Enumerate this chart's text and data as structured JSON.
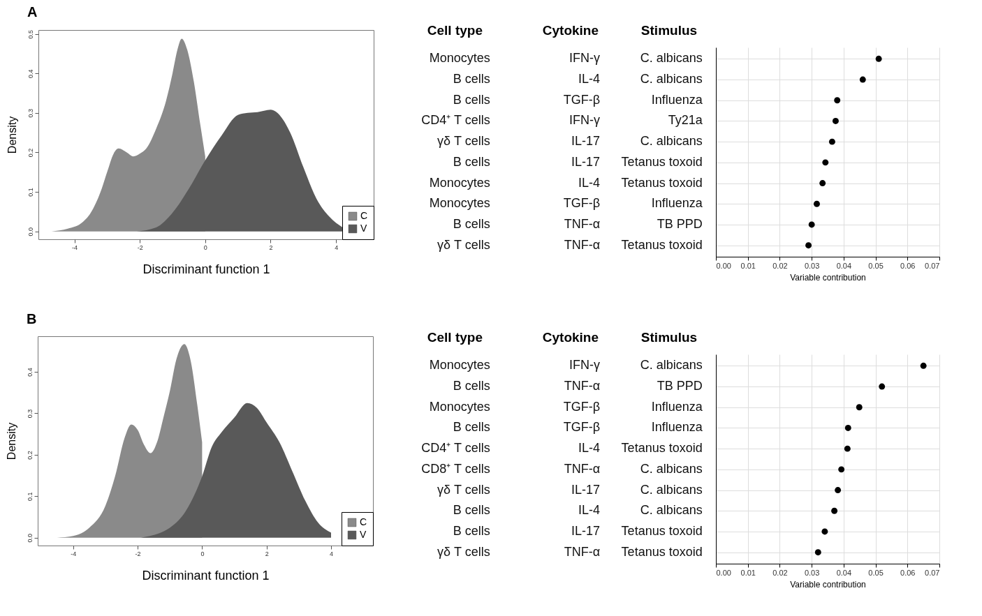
{
  "chart_data": [
    {
      "type": "area",
      "title": "A",
      "xlabel": "Discriminant function 1",
      "ylabel": "Density",
      "xlim": [
        -5.1,
        5.15
      ],
      "ylim": [
        -0.02,
        0.51
      ],
      "xticks": [
        -4,
        -2,
        0,
        2,
        4
      ],
      "yticks": [
        {
          "value": 0,
          "label": "0.0"
        },
        0.1,
        0.2,
        0.3,
        0.4,
        0.5
      ],
      "legend": "bottom right",
      "series": [
        {
          "name": "C",
          "color": "#8a8a8a",
          "x": [
            -4.7,
            -4.2,
            -3.8,
            -3.5,
            -3.2,
            -3.0,
            -2.8,
            -2.65,
            -2.4,
            -2.2,
            -2.0,
            -1.8,
            -1.5,
            -1.2,
            -1.0,
            -0.85,
            -0.72,
            -0.55,
            -0.35,
            -0.15,
            0
          ],
          "values": [
            0,
            0.007,
            0.02,
            0.047,
            0.1,
            0.15,
            0.197,
            0.21,
            0.2,
            0.19,
            0.197,
            0.21,
            0.26,
            0.33,
            0.4,
            0.46,
            0.488,
            0.46,
            0.38,
            0.27,
            0.19
          ]
        },
        {
          "name": "V",
          "color": "#595959",
          "x": [
            -2.1,
            -1.5,
            -1.0,
            -0.5,
            0,
            0.5,
            1.0,
            1.3,
            1.6,
            2.0,
            2.3,
            2.6,
            3.0,
            3.4,
            3.8,
            4.2
          ],
          "values": [
            0,
            0.01,
            0.047,
            0.108,
            0.18,
            0.243,
            0.295,
            0.3,
            0.302,
            0.308,
            0.292,
            0.25,
            0.163,
            0.083,
            0.037,
            0.01
          ]
        }
      ]
    },
    {
      "type": "other",
      "categories": [
        "Cell type",
        "Cytokine",
        "Stimulus"
      ],
      "cell_labels": [
        [
          "Monocytes",
          "IFN-γ",
          "C. albicans"
        ],
        [
          "B cells",
          "IL-4",
          "C. albicans"
        ],
        [
          "B cells",
          "TGF-β",
          "Influenza"
        ],
        [
          "CD4⁺ T cells",
          "IFN-γ",
          "Ty21a"
        ],
        [
          "γδ T cells",
          "IL-17",
          "C. albicans"
        ],
        [
          "B cells",
          "IL-17",
          "Tetanus toxoid"
        ],
        [
          "Monocytes",
          "IL-4",
          "Tetanus toxoid"
        ],
        [
          "Monocytes",
          "TGF-β",
          "Influenza"
        ],
        [
          "B cells",
          "TNF-α",
          "TB PPD"
        ],
        [
          "γδ T cells",
          "TNF-α",
          "Tetanus toxoid"
        ]
      ]
    },
    {
      "type": "scatter",
      "orientation": "horizontal",
      "categories": [
        null,
        null,
        null,
        null,
        null,
        null,
        null,
        null,
        null,
        null
      ],
      "values": [
        0.051,
        0.046,
        0.038,
        0.0375,
        0.0364,
        0.0343,
        0.0334,
        0.0316,
        0.03,
        0.029
      ],
      "color": "#000000",
      "marker": "circle",
      "xlabel": "Variable contribution",
      "xlim": [
        0,
        0.07
      ],
      "xticks": [
        {
          "value": 0,
          "label": "0.00"
        },
        0.01,
        0.02,
        0.03,
        0.04,
        0.05,
        0.06,
        0.07
      ],
      "grid": true,
      "tick_labels": "x"
    },
    {
      "type": "area",
      "title": "B",
      "xlabel": "Discriminant function 1",
      "ylabel": "Density",
      "xlim": [
        -5.1,
        5.3
      ],
      "ylim": [
        -0.019,
        0.486
      ],
      "xticks": [
        -4,
        -2,
        0,
        2,
        4
      ],
      "yticks": [
        {
          "value": 0,
          "label": "0.0"
        },
        0.1,
        0.2,
        0.3,
        0.4
      ],
      "legend": "bottom right",
      "series": [
        {
          "name": "C",
          "color": "#8a8a8a",
          "x": [
            -4.5,
            -4.0,
            -3.5,
            -3.0,
            -2.7,
            -2.4,
            -2.2,
            -2.0,
            -1.8,
            -1.6,
            -1.4,
            -1.2,
            -1.0,
            -0.8,
            -0.55,
            -0.35,
            -0.15,
            0
          ],
          "values": [
            0,
            0.004,
            0.024,
            0.077,
            0.148,
            0.242,
            0.273,
            0.26,
            0.224,
            0.204,
            0.23,
            0.29,
            0.354,
            0.43,
            0.467,
            0.425,
            0.32,
            0.23
          ]
        },
        {
          "name": "V",
          "color": "#595959",
          "x": [
            -1.9,
            -1.0,
            -0.5,
            0,
            0.3,
            0.6,
            1.0,
            1.4,
            1.7,
            2.0,
            2.4,
            2.8,
            3.2,
            3.6,
            4.0
          ],
          "values": [
            0,
            0.024,
            0.065,
            0.148,
            0.219,
            0.254,
            0.29,
            0.325,
            0.313,
            0.278,
            0.23,
            0.16,
            0.089,
            0.036,
            0.012
          ]
        }
      ]
    },
    {
      "type": "other",
      "categories": [
        "Cell type",
        "Cytokine",
        "Stimulus"
      ],
      "cell_labels": [
        [
          "Monocytes",
          "IFN-γ",
          "C. albicans"
        ],
        [
          "B cells",
          "TNF-α",
          "TB PPD"
        ],
        [
          "Monocytes",
          "TGF-β",
          "Influenza"
        ],
        [
          "B cells",
          "TGF-β",
          "Influenza"
        ],
        [
          "CD4⁺ T cells",
          "IL-4",
          "Tetanus toxoid"
        ],
        [
          "CD8⁺ T cells",
          "TNF-α",
          "C. albicans"
        ],
        [
          "γδ T cells",
          "IL-17",
          "C. albicans"
        ],
        [
          "B cells",
          "IL-4",
          "C. albicans"
        ],
        [
          "B cells",
          "IL-17",
          "Tetanus toxoid"
        ],
        [
          "γδ T cells",
          "TNF-α",
          "Tetanus toxoid"
        ]
      ]
    },
    {
      "type": "scatter",
      "orientation": "horizontal",
      "categories": [
        null,
        null,
        null,
        null,
        null,
        null,
        null,
        null,
        null,
        null
      ],
      "values": [
        0.065,
        0.052,
        0.0449,
        0.0414,
        0.0412,
        0.0393,
        0.0382,
        0.0371,
        0.0341,
        0.032
      ],
      "color": "#000000",
      "marker": "circle",
      "xlabel": "Variable contribution",
      "xlim": [
        0,
        0.07
      ],
      "xticks": [
        {
          "value": 0,
          "label": "0.00"
        },
        0.01,
        0.02,
        0.03,
        0.04,
        0.05,
        0.06,
        0.07
      ],
      "grid": true,
      "tick_labels": "x"
    }
  ]
}
